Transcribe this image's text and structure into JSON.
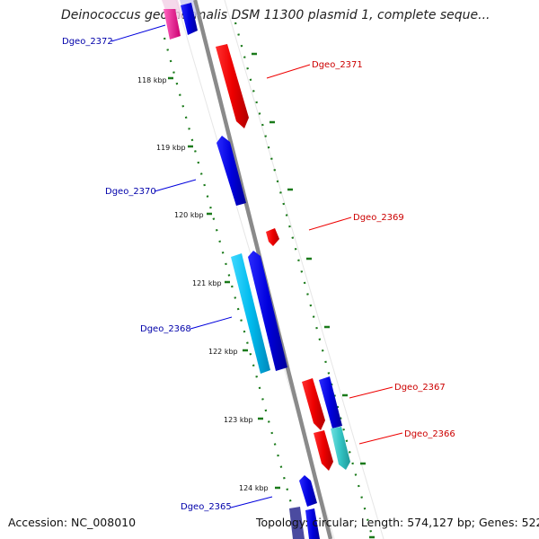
{
  "title": "Deinococcus geothermalis DSM 11300 plasmid 1, complete seque...",
  "footer": {
    "accession": "Accession: NC_008010",
    "summary": "Topology: circular; Length: 574,127 bp; Genes: 522"
  },
  "colors": {
    "backbone": "#888888",
    "tick": "#1a7a1a",
    "forward_gene": "#ee0000",
    "reverse_gene": "#0000dd",
    "label_forward": "#cc0000",
    "label_reverse": "#0000aa",
    "cyan_gene": "#00bbee",
    "teal_gene": "#33c4c4",
    "magenta_gene": "#e0107a"
  },
  "ticks": [
    "118 kbp",
    "119 kbp",
    "120 kbp",
    "121 kbp",
    "122 kbp",
    "123 kbp",
    "124 kbp"
  ],
  "genes": [
    {
      "name": "Dgeo_2372",
      "strand": "reverse",
      "color": "magenta"
    },
    {
      "name": "Dgeo_2371",
      "strand": "forward",
      "color": "red"
    },
    {
      "name": "Dgeo_2370",
      "strand": "reverse",
      "color": "blue"
    },
    {
      "name": "Dgeo_2369",
      "strand": "forward",
      "color": "red"
    },
    {
      "name": "Dgeo_2368",
      "strand": "reverse",
      "color": "cyan"
    },
    {
      "name": "Dgeo_2367",
      "strand": "forward",
      "color": "red"
    },
    {
      "name": "Dgeo_2366",
      "strand": "forward",
      "color": "teal"
    },
    {
      "name": "Dgeo_2365",
      "strand": "reverse",
      "color": "blue"
    }
  ]
}
